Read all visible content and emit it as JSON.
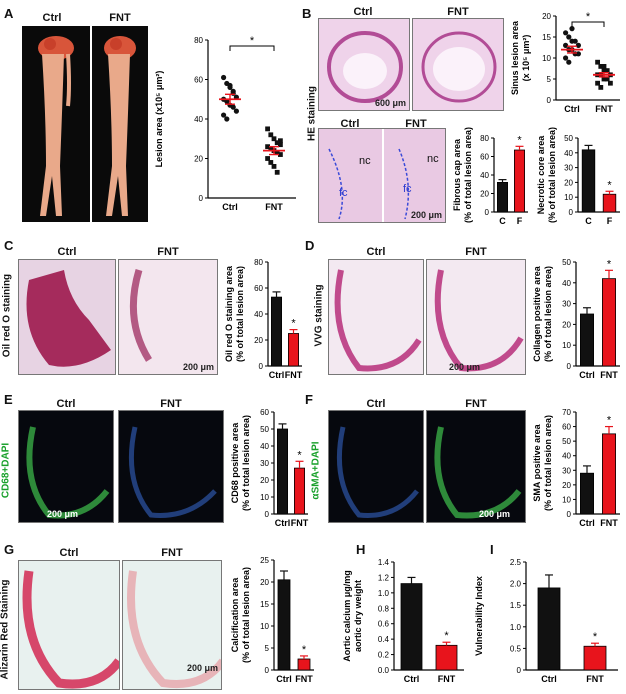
{
  "panels": {
    "A": {
      "letter": "A",
      "ctrl": "Ctrl",
      "fnt": "FNT"
    },
    "B": {
      "letter": "B",
      "ctrl": "Ctrl",
      "fnt": "FNT",
      "side_label": "HE staining",
      "scale1": "600 μm",
      "scale2": "200 μm",
      "nc": "nc",
      "fc": "fc"
    },
    "C": {
      "letter": "C",
      "ctrl": "Ctrl",
      "fnt": "FNT",
      "side_label": "Oil red O staining",
      "scale": "200 μm"
    },
    "D": {
      "letter": "D",
      "ctrl": "Ctrl",
      "fnt": "FNT",
      "side_label": "VVG staining",
      "scale": "200 μm"
    },
    "E": {
      "letter": "E",
      "ctrl": "Ctrl",
      "fnt": "FNT",
      "side_label": "CD68+DAPI",
      "scale": "200 μm"
    },
    "F": {
      "letter": "F",
      "ctrl": "Ctrl",
      "fnt": "FNT",
      "side_label": "αSMA+DAPI",
      "scale": "200 μm"
    },
    "G": {
      "letter": "G",
      "ctrl": "Ctrl",
      "fnt": "FNT",
      "side_label": "Alizarin Red Staining",
      "scale": "200 μm"
    },
    "H": {
      "letter": "H"
    },
    "I": {
      "letter": "I"
    }
  },
  "colors": {
    "red": "#e8141c",
    "black": "#111111"
  },
  "chart_data": [
    {
      "id": "A",
      "type": "scatter",
      "ylabel": "Lesion area (x10⁵ μm²)",
      "categories": [
        "Ctrl",
        "FNT"
      ],
      "ylim": [
        0,
        80
      ],
      "yticks": [
        0,
        20,
        40,
        60,
        80
      ],
      "sig": "*",
      "points": [
        [
          61,
          58,
          57,
          53,
          51,
          50,
          49,
          47,
          46,
          44,
          42,
          40,
          56,
          54
        ],
        [
          35,
          32,
          30,
          28,
          27,
          26,
          25,
          24,
          23,
          22,
          20,
          18,
          16,
          13,
          29
        ]
      ],
      "means": [
        50,
        24
      ],
      "sems": [
        2.5,
        2
      ]
    },
    {
      "id": "B1",
      "type": "scatter",
      "ylabel": "Sinus lesion area (x 10⁵ μm²)",
      "categories": [
        "Ctrl",
        "FNT"
      ],
      "ylim": [
        0,
        20
      ],
      "yticks": [
        0,
        5,
        10,
        15,
        20
      ],
      "sig": "*",
      "points": [
        [
          16,
          15,
          14,
          14,
          13,
          13,
          12,
          12,
          11,
          11,
          10,
          9,
          17
        ],
        [
          9,
          8,
          7,
          7,
          6,
          6,
          6,
          5,
          5,
          4,
          4,
          3,
          8
        ]
      ],
      "means": [
        12,
        6
      ],
      "sems": [
        0.8,
        0.5
      ]
    },
    {
      "id": "B2",
      "type": "bar",
      "ylabel": "Fibrous cap area (% of total lesion area)",
      "categories": [
        "C",
        "F"
      ],
      "ylim": [
        0,
        80
      ],
      "yticks": [
        0,
        20,
        40,
        60,
        80
      ],
      "values": [
        32,
        67
      ],
      "errors": [
        3,
        4
      ],
      "sig": "*"
    },
    {
      "id": "B3",
      "type": "bar",
      "ylabel": "Necrotic core area (% of total lesion area)",
      "categories": [
        "C",
        "F"
      ],
      "ylim": [
        0,
        50
      ],
      "yticks": [
        0,
        10,
        20,
        30,
        40,
        50
      ],
      "values": [
        42,
        12
      ],
      "errors": [
        3,
        2
      ],
      "sig": "*"
    },
    {
      "id": "C",
      "type": "bar",
      "ylabel": "Oil red O staining area (% of total lesion area)",
      "categories": [
        "Ctrl",
        "FNT"
      ],
      "ylim": [
        0,
        80
      ],
      "yticks": [
        0,
        20,
        40,
        60,
        80
      ],
      "values": [
        53,
        25
      ],
      "errors": [
        4,
        3
      ],
      "sig": "*"
    },
    {
      "id": "D",
      "type": "bar",
      "ylabel": "Collagen positive area (% of total lesion area)",
      "categories": [
        "Ctrl",
        "FNT"
      ],
      "ylim": [
        0,
        50
      ],
      "yticks": [
        0,
        10,
        20,
        30,
        40,
        50
      ],
      "values": [
        25,
        42
      ],
      "errors": [
        3,
        4
      ],
      "sig": "*"
    },
    {
      "id": "E",
      "type": "bar",
      "ylabel": "CD68 positive area (% of total lesion area)",
      "categories": [
        "Ctrl",
        "FNT"
      ],
      "ylim": [
        0,
        60
      ],
      "yticks": [
        0,
        10,
        20,
        30,
        40,
        50,
        60
      ],
      "values": [
        50,
        27
      ],
      "errors": [
        3,
        4
      ],
      "sig": "*"
    },
    {
      "id": "F",
      "type": "bar",
      "ylabel": "SMA positive area (% of total lesion area)",
      "categories": [
        "Ctrl",
        "FNT"
      ],
      "ylim": [
        0,
        70
      ],
      "yticks": [
        0,
        10,
        20,
        30,
        40,
        50,
        60,
        70
      ],
      "values": [
        28,
        55
      ],
      "errors": [
        5,
        5
      ],
      "sig": "*"
    },
    {
      "id": "G",
      "type": "bar",
      "ylabel": "Calcification area (% of total lesion area)",
      "categories": [
        "Ctrl",
        "FNT"
      ],
      "ylim": [
        0,
        25
      ],
      "yticks": [
        0,
        5,
        10,
        15,
        20,
        25
      ],
      "values": [
        20.5,
        2.5
      ],
      "errors": [
        2,
        0.7
      ],
      "sig": "*"
    },
    {
      "id": "H",
      "type": "bar",
      "ylabel": "Aortic calcium μg/mg aortic dry weight",
      "categories": [
        "Ctrl",
        "FNT"
      ],
      "ylim": [
        0,
        1.4
      ],
      "yticks": [
        0,
        0.2,
        0.4,
        0.6,
        0.8,
        1.0,
        1.2,
        1.4
      ],
      "ytickLabels": [
        "0.0",
        "0.2",
        "0.4",
        "0.6",
        "0.8",
        "1.0",
        "1.2",
        "1.4"
      ],
      "values": [
        1.12,
        0.32
      ],
      "errors": [
        0.08,
        0.04
      ],
      "sig": "*"
    },
    {
      "id": "I",
      "type": "bar",
      "ylabel": "Vulnerability Index",
      "categories": [
        "Ctrl",
        "FNT"
      ],
      "ylim": [
        0,
        2.5
      ],
      "yticks": [
        0,
        0.5,
        1.0,
        1.5,
        2.0,
        2.5
      ],
      "ytickLabels": [
        "0",
        "0.5",
        "1.0",
        "1.5",
        "2.0",
        "2.5"
      ],
      "values": [
        1.9,
        0.55
      ],
      "errors": [
        0.3,
        0.07
      ],
      "sig": "*"
    }
  ]
}
